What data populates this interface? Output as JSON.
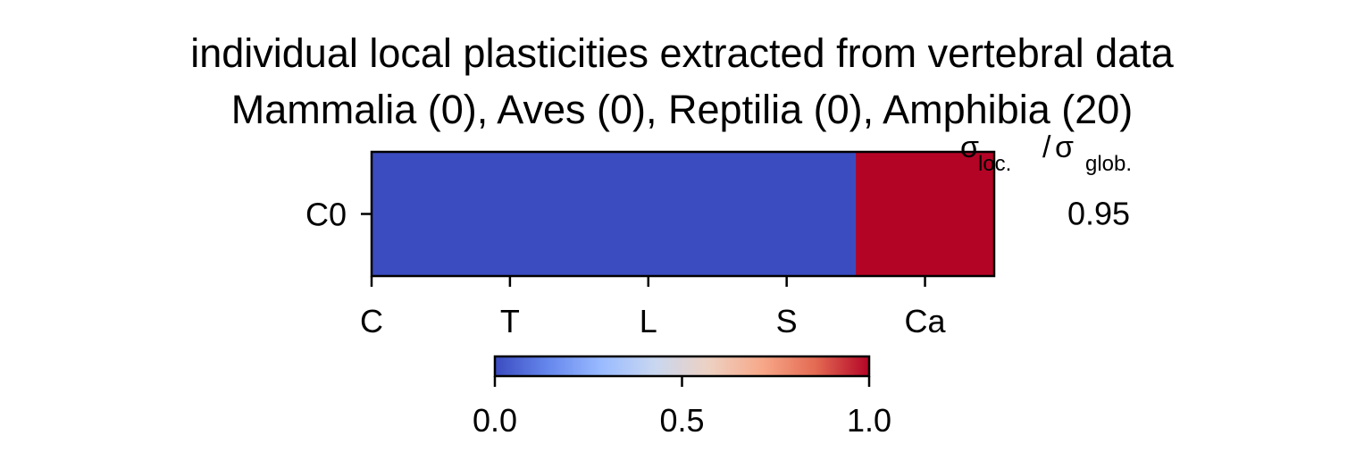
{
  "chart_data": {
    "type": "heatmap",
    "title": "individual local plasticities extracted from vertebral data",
    "subtitle": "Mammalia (0), Aves (0), Reptilia (0), Amphibia (20)",
    "rows": [
      "C0"
    ],
    "columns": [
      "C",
      "T",
      "L",
      "S",
      "Ca"
    ],
    "values": [
      [
        0.0,
        0.0,
        0.0,
        0.0,
        1.0
      ]
    ],
    "colormap": "coolwarm",
    "colormap_stops": [
      "#3b4cc0",
      "#6687ed",
      "#9abbff",
      "#c9d7f0",
      "#edd1c2",
      "#f7a889",
      "#e36a53",
      "#b40426"
    ],
    "colorbar": {
      "ticks": [
        "0.0",
        "0.5",
        "1.0"
      ],
      "range": [
        0.0,
        1.0
      ]
    },
    "side_column": {
      "header_sigma_1": "σ",
      "header_sub_1": "loc.",
      "header_slash": "/",
      "header_sigma_2": "σ",
      "header_sub_2": "glob.",
      "values": [
        "0.95"
      ]
    }
  }
}
